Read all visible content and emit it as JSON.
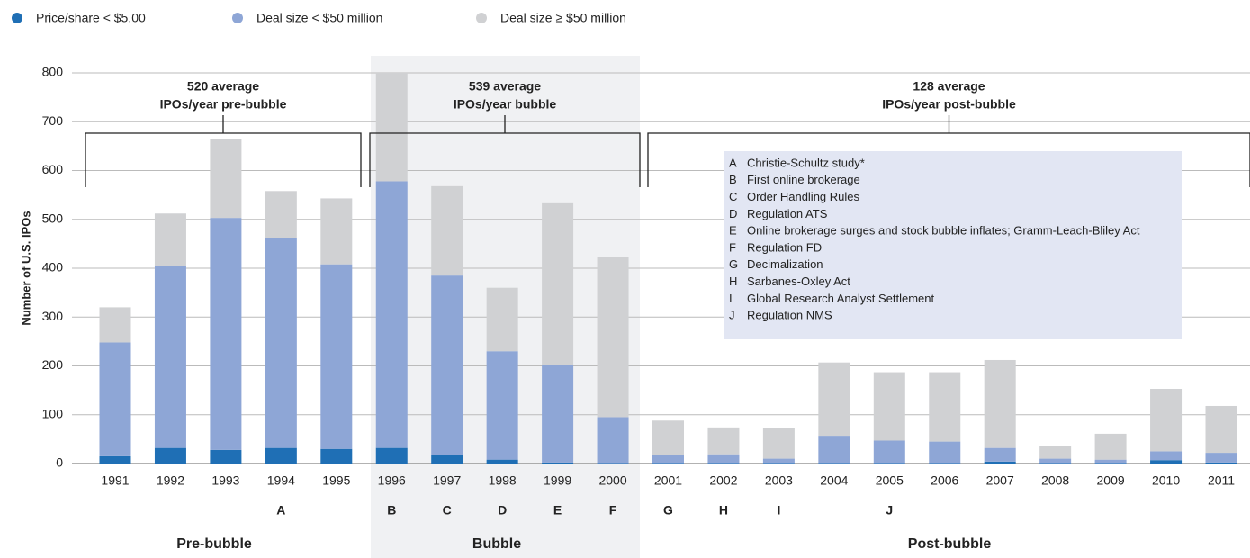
{
  "chart_data": {
    "type": "stacked_bar",
    "y_label": "Number of U.S. IPOs",
    "categories": [
      "1991",
      "1992",
      "1993",
      "1994",
      "1995",
      "1996",
      "1997",
      "1998",
      "1999",
      "2000",
      "2001",
      "2002",
      "2003",
      "2004",
      "2005",
      "2006",
      "2007",
      "2008",
      "2009",
      "2010",
      "2011"
    ],
    "category_letters": [
      null,
      null,
      null,
      "A",
      null,
      "B",
      "C",
      "D",
      "E",
      "F",
      "G",
      "H",
      "I",
      null,
      "J",
      null,
      null,
      null,
      null,
      null,
      null
    ],
    "series": [
      {
        "name": "Price/share < $5.00",
        "color": "#1f6fb5",
        "values": [
          15,
          32,
          28,
          32,
          30,
          32,
          17,
          8,
          2,
          1,
          1,
          1,
          1,
          1,
          1,
          1,
          4,
          1,
          1,
          7,
          2
        ]
      },
      {
        "name": "Deal size < $50 million",
        "color": "#8ea6d6",
        "values": [
          233,
          373,
          475,
          430,
          378,
          546,
          368,
          222,
          200,
          94,
          16,
          18,
          9,
          56,
          46,
          44,
          28,
          9,
          7,
          18,
          20
        ]
      },
      {
        "name": "Deal size ≥ $50 million",
        "color": "#d0d1d3",
        "values": [
          72,
          107,
          162,
          96,
          135,
          222,
          183,
          130,
          331,
          328,
          71,
          55,
          62,
          150,
          140,
          142,
          180,
          25,
          53,
          128,
          96
        ]
      }
    ],
    "periods": [
      {
        "name": "Pre-bubble",
        "annotation": [
          "520 average",
          "IPOs/year pre-bubble"
        ]
      },
      {
        "name": "Bubble",
        "annotation": [
          "539 average",
          "IPOs/year bubble"
        ]
      },
      {
        "name": "Post-bubble",
        "annotation": [
          "128 average",
          "IPOs/year post-bubble"
        ]
      }
    ],
    "key": [
      {
        "letter": "A",
        "text": "Christie-Schultz study*"
      },
      {
        "letter": "B",
        "text": "First online brokerage"
      },
      {
        "letter": "C",
        "text": "Order Handling Rules"
      },
      {
        "letter": "D",
        "text": "Regulation ATS"
      },
      {
        "letter": "E",
        "text": "Online brokerage surges and stock bubble inflates; Gramm-Leach-Bliley Act"
      },
      {
        "letter": "F",
        "text": "Regulation FD"
      },
      {
        "letter": "G",
        "text": "Decimalization"
      },
      {
        "letter": "H",
        "text": "Sarbanes-Oxley Act"
      },
      {
        "letter": "I",
        "text": "Global Research Analyst Settlement"
      },
      {
        "letter": "J",
        "text": "Regulation NMS"
      }
    ],
    "ylim": [
      0,
      800
    ],
    "yticks": [
      0,
      100,
      200,
      300,
      400,
      500,
      600,
      700,
      800
    ],
    "grid": true
  }
}
